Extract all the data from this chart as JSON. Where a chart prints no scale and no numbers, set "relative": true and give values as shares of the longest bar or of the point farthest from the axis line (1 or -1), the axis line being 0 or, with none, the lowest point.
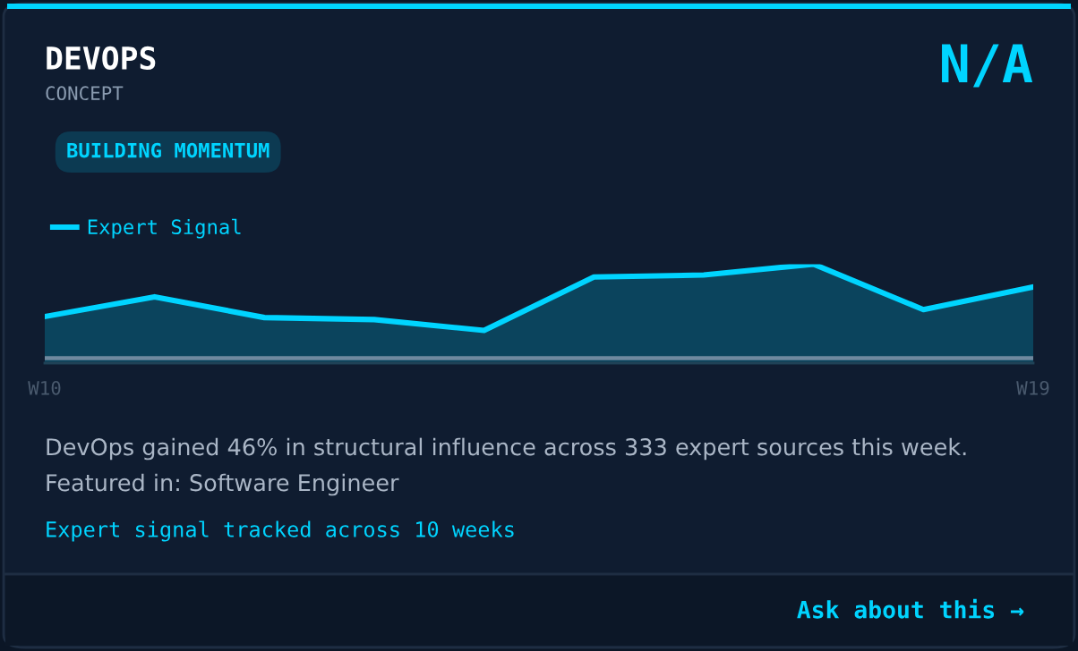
{
  "chart_data": {
    "type": "area",
    "title": "DEVOPS",
    "subtitle": "CONCEPT",
    "categories": [
      "W10",
      null,
      null,
      null,
      null,
      null,
      null,
      null,
      null,
      "W19"
    ],
    "relative": true,
    "series": [
      {
        "name": "Expert Signal",
        "color": "#00d4ff",
        "values": [
          0.47,
          0.67,
          0.46,
          0.44,
          0.33,
          0.87,
          0.89,
          1,
          0.54,
          0.77
        ]
      },
      {
        "type": "line",
        "color": "#8a9bb0",
        "values": [
          0.05,
          0.05,
          0.05,
          0.05,
          0.05,
          0.05,
          0.05,
          0.05,
          0.05,
          0.05
        ]
      }
    ],
    "legend": "top left",
    "grid": false,
    "marker": "none",
    "line_style": "solid",
    "annotations": [
      "N/A",
      "BUILDING MOMENTUM",
      "DevOps gained 46% in structural influence across 333 expert sources this week.",
      "Featured in: Software Engineer",
      "Expert signal tracked across 10 weeks",
      "Ask about this →"
    ]
  }
}
